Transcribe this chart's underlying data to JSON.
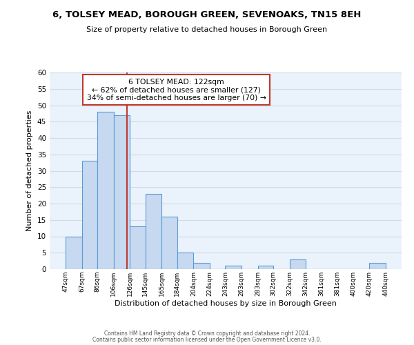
{
  "title": "6, TOLSEY MEAD, BOROUGH GREEN, SEVENOAKS, TN15 8EH",
  "subtitle": "Size of property relative to detached houses in Borough Green",
  "xlabel": "Distribution of detached houses by size in Borough Green",
  "ylabel": "Number of detached properties",
  "bin_edges": [
    47,
    67,
    86,
    106,
    126,
    145,
    165,
    184,
    204,
    224,
    243,
    263,
    283,
    302,
    322,
    342,
    361,
    381,
    400,
    420,
    440
  ],
  "bin_counts": [
    10,
    33,
    48,
    47,
    13,
    23,
    16,
    5,
    2,
    0,
    1,
    0,
    1,
    0,
    3,
    0,
    0,
    0,
    0,
    2
  ],
  "bar_color": "#c6d9f0",
  "bar_edge_color": "#5b9bd5",
  "vline_x": 122,
  "vline_color": "#c0392b",
  "annotation_text": "6 TOLSEY MEAD: 122sqm\n← 62% of detached houses are smaller (127)\n34% of semi-detached houses are larger (70) →",
  "annotation_box_color": "#ffffff",
  "annotation_box_edge_color": "#c0392b",
  "ylim": [
    0,
    60
  ],
  "yticks": [
    0,
    5,
    10,
    15,
    20,
    25,
    30,
    35,
    40,
    45,
    50,
    55,
    60
  ],
  "xtick_labels": [
    "47sqm",
    "67sqm",
    "86sqm",
    "106sqm",
    "126sqm",
    "145sqm",
    "165sqm",
    "184sqm",
    "204sqm",
    "224sqm",
    "243sqm",
    "263sqm",
    "283sqm",
    "302sqm",
    "322sqm",
    "342sqm",
    "361sqm",
    "381sqm",
    "400sqm",
    "420sqm",
    "440sqm"
  ],
  "footer_line1": "Contains HM Land Registry data © Crown copyright and database right 2024.",
  "footer_line2": "Contains public sector information licensed under the Open Government Licence v3.0.",
  "grid_color": "#d0dce8",
  "background_color": "#eaf2fb"
}
